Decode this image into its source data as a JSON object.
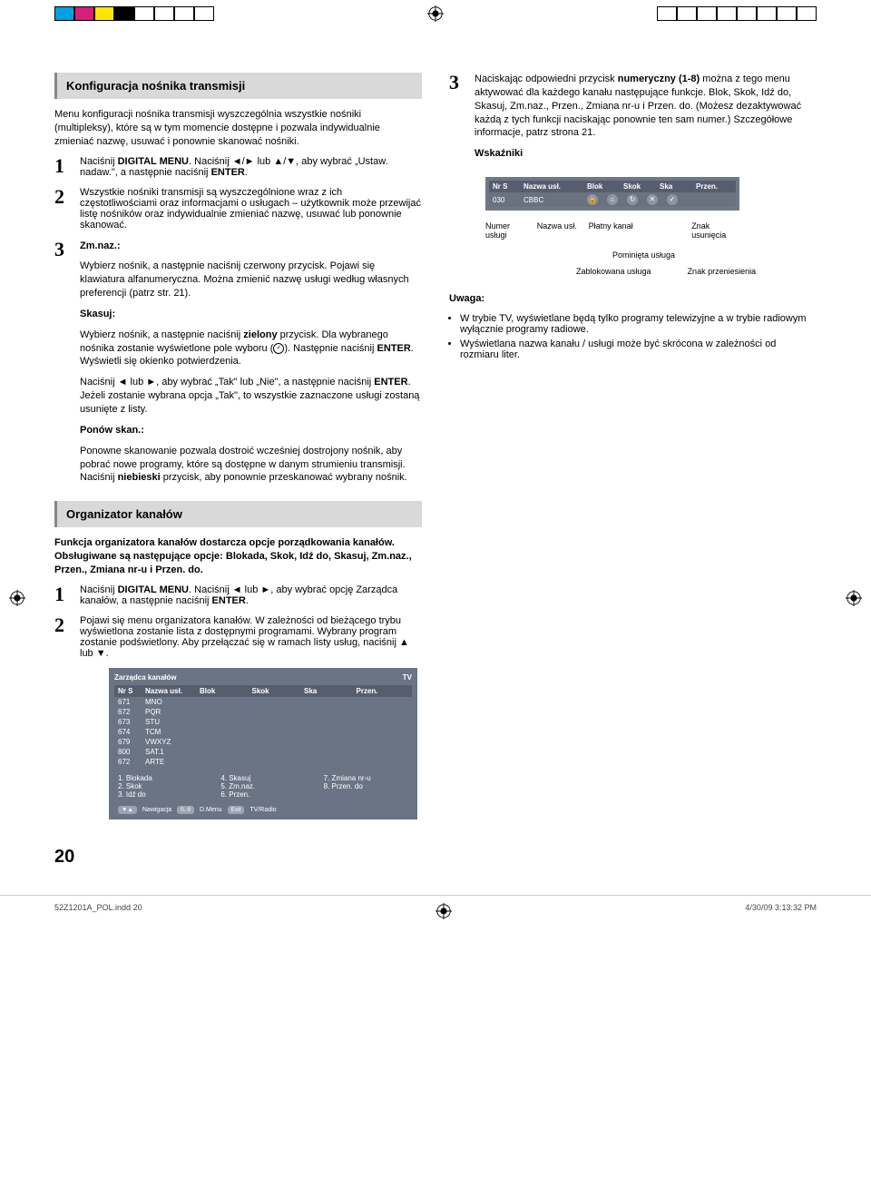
{
  "swatches_left": [
    "#00a1e1",
    "#d81e7b",
    "#ffe600",
    "#000000",
    "#ffffff",
    "#ffffff",
    "#ffffff",
    "#ffffff"
  ],
  "swatches_right": [
    "#ffffff",
    "#ffffff",
    "#ffffff",
    "#ffffff",
    "#ffffff",
    "#ffffff",
    "#ffffff",
    "#ffffff"
  ],
  "section1_title": "Konfiguracja nośnika transmisji",
  "section1_intro": "Menu konfiguracji nośnika transmisji wyszczególnia wszystkie nośniki (multipleksy), które są w tym momencie dostępne i pozwala indywidualnie zmieniać nazwę, usuwać i ponownie skanować nośniki.",
  "s1_step1_a": "Naciśnij ",
  "s1_step1_b": "DIGITAL MENU",
  "s1_step1_c": ". Naciśnij ◄/► lub ▲/▼, aby wybrać „Ustaw. nadaw.\", a następnie naciśnij ",
  "s1_step1_d": "ENTER",
  "s1_step1_e": ".",
  "s1_step2": "Wszystkie nośniki transmisji są wyszczególnione wraz z ich częstotliwościami oraz informacjami o usługach – użytkownik może przewijać listę nośników oraz indywidualnie zmieniać nazwę, usuwać lub ponownie skanować.",
  "s1_step3_h": "Zm.naz.:",
  "s1_step3_p1": "Wybierz nośnik, a następnie naciśnij czerwony przycisk. Pojawi się klawiatura alfanumeryczna. Można zmienić nazwę usługi według własnych preferencji (patrz str. 21).",
  "s1_skasuj_h": "Skasuj:",
  "s1_skasuj_p_a": "Wybierz nośnik, a następnie naciśnij ",
  "s1_skasuj_p_b": "zielony",
  "s1_skasuj_p_c": " przycisk. Dla wybranego nośnika zostanie wyświetlone pole wyboru (",
  "s1_skasuj_p_d": "). Następnie naciśnij ",
  "s1_skasuj_p_e": "ENTER",
  "s1_skasuj_p_f": ". Wyświetli się okienko potwierdzenia.",
  "s1_skasuj_p2_a": "Naciśnij ◄ lub ►, aby wybrać „Tak\" lub „Nie\", a następnie naciśnij ",
  "s1_skasuj_p2_b": "ENTER",
  "s1_skasuj_p2_c": ". Jeżeli zostanie wybrana opcja „Tak\", to wszystkie zaznaczone usługi zostaną usunięte z listy.",
  "s1_ponow_h": "Ponów skan.:",
  "s1_ponow_p_a": "Ponowne skanowanie pozwala dostroić wcześniej dostrojony nośnik, aby pobrać nowe programy, które są dostępne w danym strumieniu transmisji. Naciśnij ",
  "s1_ponow_p_b": "niebieski",
  "s1_ponow_p_c": " przycisk, aby ponownie przeskanować wybrany nośnik.",
  "section2_title": "Organizator kanałów",
  "section2_intro": "Funkcja organizatora kanałów dostarcza opcje porządkowania kanałów. Obsługiwane są następujące opcje: Blokada, Skok, Idź do, Skasuj, Zm.naz., Przen., Zmiana nr-u i Przen. do.",
  "s2_step1_a": "Naciśnij ",
  "s2_step1_b": "DIGITAL MENU",
  "s2_step1_c": ". Naciśnij ◄ lub ►, aby wybrać opcję Zarządca kanałów, a następnie naciśnij ",
  "s2_step1_d": "ENTER",
  "s2_step1_e": ".",
  "s2_step2": "Pojawi się menu organizatora kanałów. W zależności od bieżącego trybu wyświetlona zostanie lista z dostępnymi programami. Wybrany program zostanie podświetlony. Aby przełączać się w ramach listy usług, naciśnij ▲ lub ▼.",
  "right_step3_a": "Naciskając odpowiedni przycisk ",
  "right_step3_b": "numeryczny (1-8)",
  "right_step3_c": " można z tego menu aktywować dla każdego kanału następujące funkcje. Blok, Skok, Idź do, Skasuj, Zm.naz., Przen., Zmiana nr-u i Przen. do. (Możesz dezaktywować każdą z tych funkcji naciskając ponownie ten sam numer.) Szczegółowe informacje, patrz strona 21.",
  "wskazniki_h": "Wskaźniki",
  "osd_mini": {
    "headers": [
      "Nr S",
      "Nazwa usł.",
      "Blok",
      "Skok",
      "Ska",
      "Przen."
    ],
    "nr": "030",
    "name": "CBBC",
    "icons": [
      "🔒",
      "⌂",
      "↻",
      "✕",
      "✓"
    ],
    "labels": [
      "Numer usługi",
      "Nazwa usł.",
      "Płatny kanał",
      "",
      "Znak usunięcia"
    ],
    "sub1_a": "Pominięta usługa",
    "sub2_a": "Zablokowana usługa",
    "sub2_b": "Znak przeniesienia"
  },
  "uwaga_h": "Uwaga:",
  "uwaga_1": "W trybie TV, wyświetlane będą tylko programy telewizyjne a w trybie radiowym wyłącznie programy radiowe.",
  "uwaga_2": "Wyświetlana nazwa kanału / usługi może być skrócona w zależności od rozmiaru liter.",
  "osd_big": {
    "title": "Zarządca kanałów",
    "mode": "TV",
    "headers": [
      "Nr S",
      "Nazwa usł.",
      "Blok",
      "Skok",
      "Ska",
      "Przen."
    ],
    "rows": [
      [
        "671",
        "MNO"
      ],
      [
        "672",
        "PQR"
      ],
      [
        "673",
        "STU"
      ],
      [
        "674",
        "TCM"
      ],
      [
        "679",
        "VWXYZ"
      ],
      [
        "800",
        "SAT.1"
      ],
      [
        "672",
        "ARTE"
      ]
    ],
    "legend": [
      [
        "1. Blokada",
        "2. Skok",
        "3. Idź do"
      ],
      [
        "4. Skasuj",
        "5. Zm.naz.",
        "6. Przen."
      ],
      [
        "7. Zmiana nr-u",
        "8. Przen. do"
      ]
    ],
    "nav": [
      "▼▲",
      "Nawigacja",
      "0..9",
      "D.Menu",
      "Exit",
      "TV/Radio"
    ]
  },
  "page_number": "20",
  "footer_left": "52Z1201A_POL.indd   20",
  "footer_right": "4/30/09   3:13:32 PM"
}
